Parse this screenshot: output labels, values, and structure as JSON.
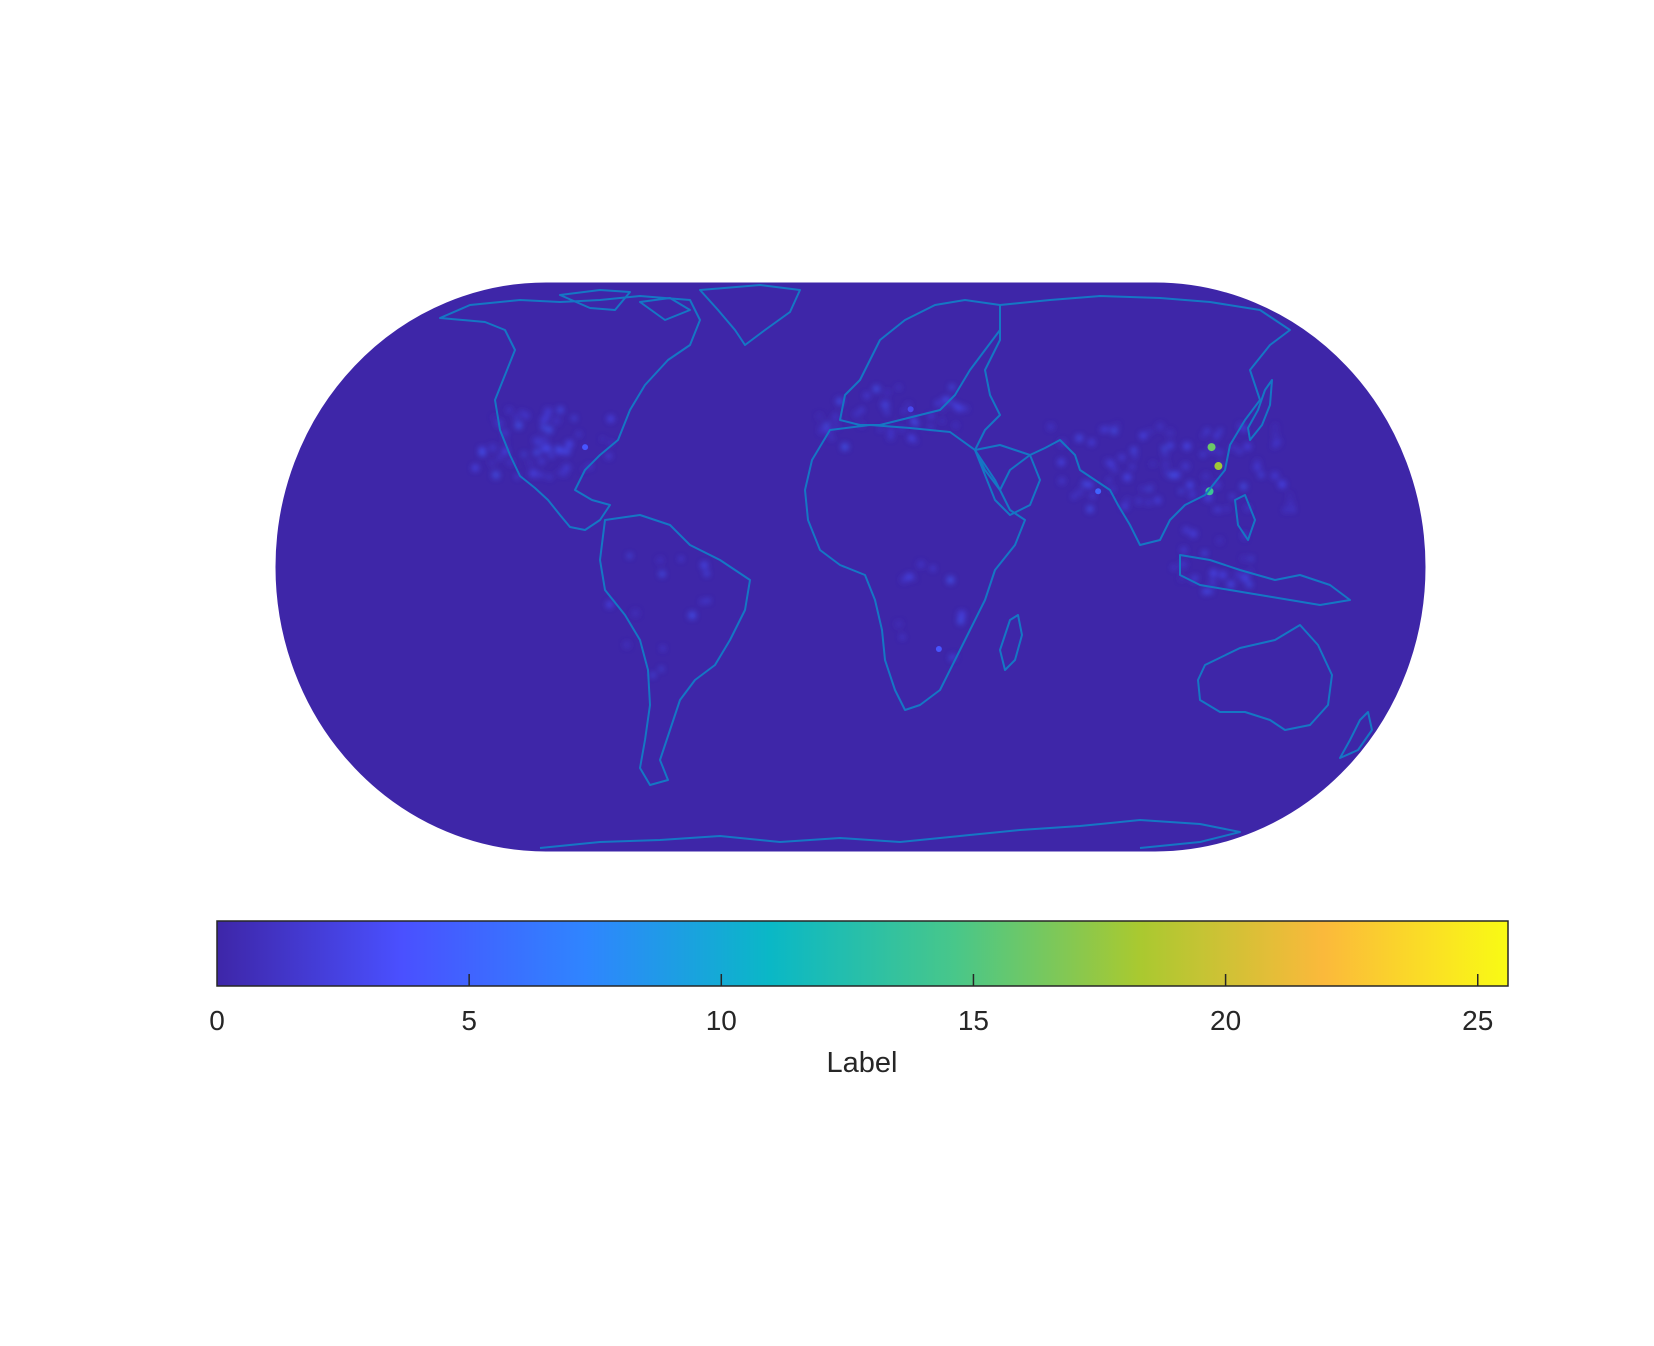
{
  "map": {
    "projection": "Eckert IV (pseudocylindrical, rounded-pole)",
    "background_value_color": "#3e26a8",
    "coastline_color": "#1577c4",
    "colormap": [
      "#3e26a8",
      "#4a50ff",
      "#2f85ff",
      "#0ab8c6",
      "#48c78a",
      "#a9c930",
      "#fbb93b",
      "#f9fb14"
    ]
  },
  "colorbar": {
    "label": "Label",
    "orientation": "horizontal",
    "placement": "below-map",
    "range": [
      0,
      25.6
    ],
    "ticks": [
      {
        "value": 0,
        "label": "0"
      },
      {
        "value": 5,
        "label": "5"
      },
      {
        "value": 10,
        "label": "10"
      },
      {
        "value": 15,
        "label": "15"
      },
      {
        "value": 20,
        "label": "20"
      },
      {
        "value": 25,
        "label": "25"
      }
    ]
  },
  "hotspots": [
    {
      "region": "eastern-china",
      "lon": 117,
      "lat": 32,
      "value": 18
    },
    {
      "region": "northern-china",
      "lon": 116,
      "lat": 38,
      "value": 16
    },
    {
      "region": "southern-china",
      "lon": 113,
      "lat": 24,
      "value": 14
    },
    {
      "region": "india",
      "lon": 78,
      "lat": 24,
      "value": 5
    },
    {
      "region": "eastern-us",
      "lon": -85,
      "lat": 38,
      "value": 4
    },
    {
      "region": "europe",
      "lon": 20,
      "lat": 50,
      "value": 3
    },
    {
      "region": "south-africa",
      "lon": 28,
      "lat": -26,
      "value": 4
    }
  ]
}
